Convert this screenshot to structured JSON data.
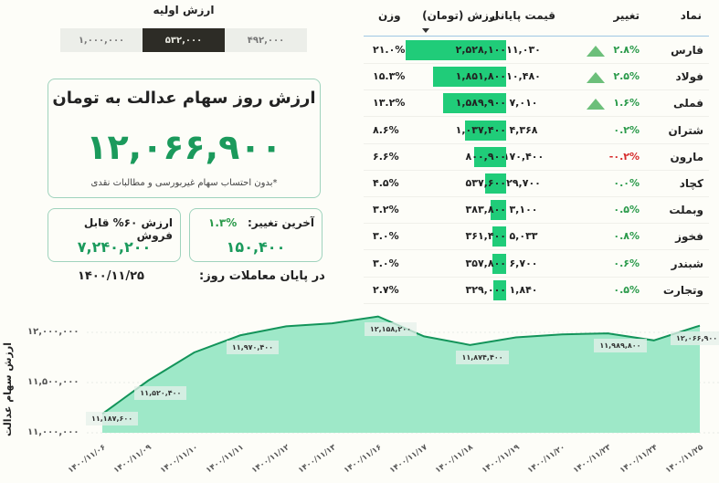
{
  "initial_value": {
    "title": "ارزش اولیه",
    "options": [
      "۱,۰۰۰,۰۰۰",
      "۵۳۲,۰۰۰",
      "۴۹۲,۰۰۰"
    ],
    "selected": "۵۳۲,۰۰۰"
  },
  "main_card": {
    "title": "ارزش روز سهام عدالت به تومان",
    "value": "۱۲,۰۶۶,۹۰۰",
    "note": "*بدون احتساب سهام غیربورسی و مطالبات نقدی"
  },
  "sellable_card": {
    "title": "ارزش ۶۰% قابل فروش",
    "value": "۷,۲۴۰,۲۰۰"
  },
  "last_change_card": {
    "title": "آخرین تغییر:",
    "percent": "۱.۳%",
    "value": "۱۵۰,۴۰۰"
  },
  "footer": {
    "label": "در پایان معاملات روز:",
    "date": "۱۴۰۰/۱۱/۲۵"
  },
  "table": {
    "headers": {
      "symbol": "نماد",
      "change": "تغییر",
      "close_price": "قیمت پایانی",
      "value": "ارزش (تومان)",
      "weight": "وزن"
    },
    "sorted_by": "value",
    "rows": [
      {
        "symbol": "فارس",
        "change": "۲.۸%",
        "dir": "pos",
        "up_icon": true,
        "close": "۱۱,۰۳۰",
        "value": "۲,۵۲۸,۱۰۰",
        "bar": 100,
        "weight": "۲۱.۰%"
      },
      {
        "symbol": "فولاد",
        "change": "۲.۵%",
        "dir": "pos",
        "up_icon": true,
        "close": "۱۰,۴۸۰",
        "value": "۱,۸۵۱,۸۰۰",
        "bar": 73,
        "weight": "۱۵.۳%"
      },
      {
        "symbol": "فملی",
        "change": "۱.۶%",
        "dir": "pos",
        "up_icon": true,
        "close": "۷,۰۱۰",
        "value": "۱,۵۸۹,۹۰۰",
        "bar": 63,
        "weight": "۱۳.۲%"
      },
      {
        "symbol": "شتران",
        "change": "۰.۲%",
        "dir": "pos",
        "up_icon": false,
        "close": "۴,۳۶۸",
        "value": "۱,۰۳۷,۴۰۰",
        "bar": 41,
        "weight": "۸.۶%"
      },
      {
        "symbol": "مارون",
        "change": "-۰.۲%",
        "dir": "neg",
        "up_icon": false,
        "close": "۱۷۰,۴۰۰",
        "value": "۸۰۰,۹۰۰",
        "bar": 32,
        "weight": "۶.۶%"
      },
      {
        "symbol": "کچاد",
        "change": "۰.۰%",
        "dir": "pos",
        "up_icon": false,
        "close": "۲۹,۷۰۰",
        "value": "۵۳۷,۶۰۰",
        "bar": 21,
        "weight": "۴.۵%"
      },
      {
        "symbol": "وبملت",
        "change": "۰.۵%",
        "dir": "pos",
        "up_icon": false,
        "close": "۳,۱۰۰",
        "value": "۳۸۳,۸۰۰",
        "bar": 15,
        "weight": "۳.۲%"
      },
      {
        "symbol": "فخوز",
        "change": "۰.۸%",
        "dir": "pos",
        "up_icon": false,
        "close": "۵,۰۳۳",
        "value": "۳۶۱,۴۰۰",
        "bar": 14,
        "weight": "۳.۰%"
      },
      {
        "symbol": "شبندر",
        "change": "۰.۶%",
        "dir": "pos",
        "up_icon": false,
        "close": "۶,۷۰۰",
        "value": "۳۵۷,۸۰۰",
        "bar": 14,
        "weight": "۳.۰%"
      },
      {
        "symbol": "وتجارت",
        "change": "۰.۵%",
        "dir": "pos",
        "up_icon": false,
        "close": "۱,۸۴۰",
        "value": "۳۲۹,۰۰۰",
        "bar": 13,
        "weight": "۲.۷%"
      }
    ]
  },
  "colors": {
    "accent_green": "#1b9a5c",
    "bar_green": "#20cc79",
    "area_fill": "#9ee8c8",
    "line": "#13945a",
    "negative": "#d62a2a",
    "selected_segment": "#2d2c26"
  },
  "chart_data": {
    "type": "area",
    "title": "",
    "ylabel": "ارزش سهام عدالت",
    "xlabel": "",
    "x": [
      "۱۴۰۰/۱۱/۰۶",
      "۱۴۰۰/۱۱/۰۹",
      "۱۴۰۰/۱۱/۱۰",
      "۱۴۰۰/۱۱/۱۱",
      "۱۴۰۰/۱۱/۱۲",
      "۱۴۰۰/۱۱/۱۳",
      "۱۴۰۰/۱۱/۱۶",
      "۱۴۰۰/۱۱/۱۷",
      "۱۴۰۰/۱۱/۱۸",
      "۱۴۰۰/۱۱/۱۹",
      "۱۴۰۰/۱۱/۲۰",
      "۱۴۰۰/۱۱/۲۳",
      "۱۴۰۰/۱۱/۲۴",
      "۱۴۰۰/۱۱/۲۵"
    ],
    "values": [
      11187600,
      11520400,
      11800000,
      11970400,
      12060000,
      12090000,
      12158200,
      11960000,
      11874400,
      11950000,
      11980000,
      11989800,
      11920000,
      12066900
    ],
    "labeled_points": {
      "0": "۱۱,۱۸۷,۶۰۰",
      "1": "۱۱,۵۲۰,۴۰۰",
      "3": "۱۱,۹۷۰,۴۰۰",
      "6": "۱۲,۱۵۸,۲۰۰",
      "8": "۱۱,۸۷۴,۴۰۰",
      "11": "۱۱,۹۸۹,۸۰۰",
      "13": "۱۲,۰۶۶,۹۰۰"
    },
    "yticks": [
      "۱۱,۰۰۰,۰۰۰",
      "۱۱,۵۰۰,۰۰۰",
      "۱۲,۰۰۰,۰۰۰"
    ],
    "ylim": [
      11000000,
      12250000
    ],
    "grid": true,
    "legend": false
  }
}
